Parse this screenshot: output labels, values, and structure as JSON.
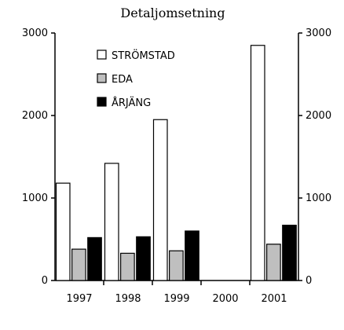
{
  "chart_data": {
    "type": "bar",
    "title": "Detaljomsetning",
    "xlabel": "",
    "ylabel": "",
    "categories": [
      "1997",
      "1998",
      "1999",
      "2000",
      "2001"
    ],
    "series": [
      {
        "name": "STRÖMSTAD",
        "color": "#ffffff",
        "values": [
          1180,
          1420,
          1950,
          null,
          2850
        ]
      },
      {
        "name": "EDA",
        "color": "#bfbfbf",
        "values": [
          380,
          330,
          360,
          null,
          440
        ]
      },
      {
        "name": "ÅRJÄNG",
        "color": "#000000",
        "values": [
          520,
          530,
          600,
          null,
          670
        ]
      }
    ],
    "ylim": [
      0,
      3000
    ],
    "yticks": [
      "0",
      "1000",
      "2000",
      "3000"
    ],
    "grid": false,
    "legend_position": "top-left inside plot",
    "secondary_axis": "right, mirrored"
  }
}
